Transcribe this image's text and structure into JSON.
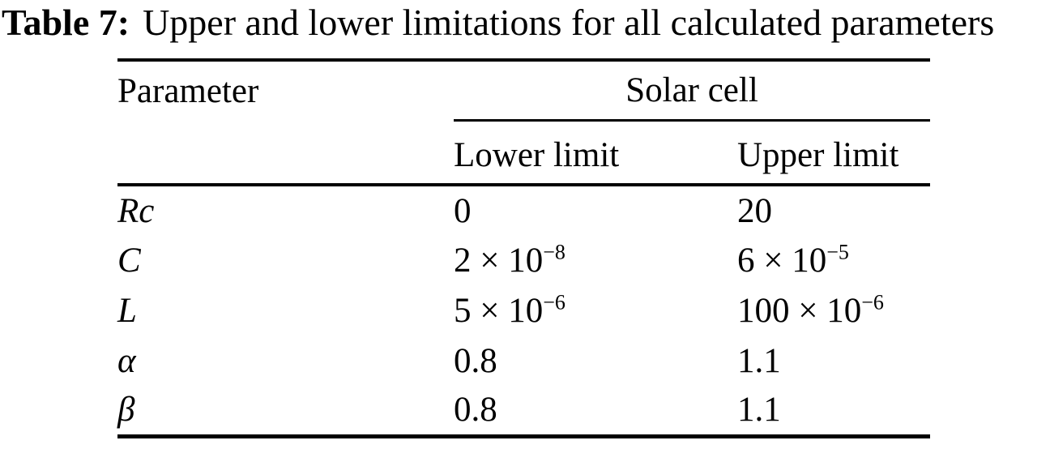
{
  "caption": {
    "label": "Table 7:",
    "text": "Upper and lower limitations for all calculated parameters"
  },
  "colors": {
    "text": "#000000",
    "background": "#ffffff",
    "rule": "#000000"
  },
  "table": {
    "header": {
      "parameter": "Parameter",
      "group": "Solar cell",
      "lower": "Lower limit",
      "upper": "Upper limit"
    },
    "rows": [
      {
        "param": "Rc",
        "lower_base": "0",
        "lower_exp": "",
        "upper_base": "20",
        "upper_exp": ""
      },
      {
        "param": "C",
        "lower_base": "2 × 10",
        "lower_exp": "−8",
        "upper_base": "6 × 10",
        "upper_exp": "−5"
      },
      {
        "param": "L",
        "lower_base": "5 × 10",
        "lower_exp": "−6",
        "upper_base": "100 × 10",
        "upper_exp": "−6"
      },
      {
        "param": "α",
        "lower_base": "0.8",
        "lower_exp": "",
        "upper_base": "1.1",
        "upper_exp": ""
      },
      {
        "param": "β",
        "lower_base": "0.8",
        "lower_exp": "",
        "upper_base": "1.1",
        "upper_exp": ""
      }
    ]
  }
}
